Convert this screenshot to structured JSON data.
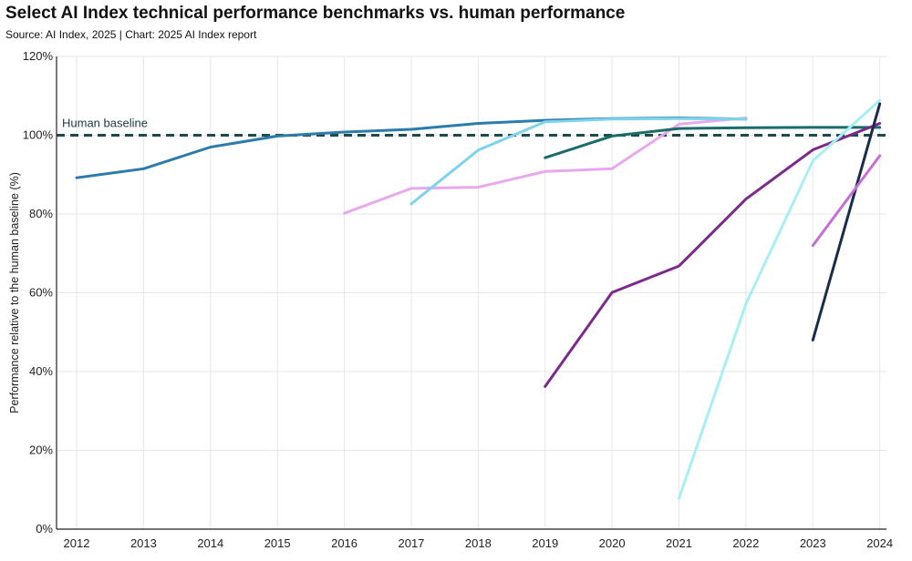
{
  "title": "Select AI Index technical performance benchmarks vs. human performance",
  "subtitle": "Source: AI Index, 2025 | Chart: 2025 AI Index report",
  "colors": {
    "baseline": "#1d4a4a",
    "grid": "#e6e6e6",
    "axis": "#222222"
  },
  "chart_data": {
    "type": "line",
    "title": "Select AI Index technical performance benchmarks vs. human performance",
    "subtitle": "Source: AI Index, 2025 | Chart: 2025 AI Index report",
    "xlabel": "",
    "ylabel": "Performance relative to the human baseline (%)",
    "x_ticks": [
      "2012",
      "2013",
      "2014",
      "2015",
      "2016",
      "2017",
      "2018",
      "2019",
      "2020",
      "2021",
      "2022",
      "2023",
      "2024"
    ],
    "y_ticks": [
      "0%",
      "20%",
      "40%",
      "60%",
      "80%",
      "100%",
      "120%"
    ],
    "ylim": [
      0,
      120
    ],
    "xlim": [
      2011.7,
      2024.1
    ],
    "grid": true,
    "reference_line": {
      "label": "Human baseline",
      "value": 100,
      "style": "dashed"
    },
    "series": [
      {
        "color": "#2b7bab",
        "x": [
          2012,
          2013,
          2014,
          2015,
          2016,
          2017,
          2018,
          2019,
          2020,
          2021,
          2022
        ],
        "y": [
          89.2,
          91.5,
          97,
          99.8,
          100.8,
          101.5,
          103,
          103.8,
          104.2,
          104.4,
          104.1
        ]
      },
      {
        "color": "#e8a8ee",
        "x": [
          2016,
          2017,
          2018,
          2019,
          2020,
          2021,
          2022
        ],
        "y": [
          80.2,
          86.5,
          86.8,
          90.8,
          91.5,
          102.8,
          104.4
        ]
      },
      {
        "color": "#7dd3ee",
        "x": [
          2017,
          2018,
          2019,
          2020,
          2021,
          2022
        ],
        "y": [
          82.6,
          96.2,
          103.4,
          104.1,
          104.2,
          104.1
        ]
      },
      {
        "color": "#1a6b6b",
        "x": [
          2019,
          2020,
          2021,
          2022,
          2023,
          2024
        ],
        "y": [
          94.3,
          99.8,
          101.7,
          101.9,
          102,
          102
        ]
      },
      {
        "color": "#7b2a8c",
        "x": [
          2019,
          2020,
          2021,
          2022,
          2023,
          2024
        ],
        "y": [
          36.2,
          60.1,
          66.8,
          83.8,
          96.3,
          103
        ]
      },
      {
        "color": "#a7eef5",
        "x": [
          2021,
          2022,
          2023,
          2024
        ],
        "y": [
          7.8,
          57.2,
          93.5,
          108.9
        ]
      },
      {
        "color": "#1a2b4c",
        "x": [
          2023,
          2024
        ],
        "y": [
          48,
          108
        ]
      },
      {
        "color": "#c46fd6",
        "x": [
          2023,
          2024
        ],
        "y": [
          72,
          94.8
        ]
      }
    ]
  }
}
